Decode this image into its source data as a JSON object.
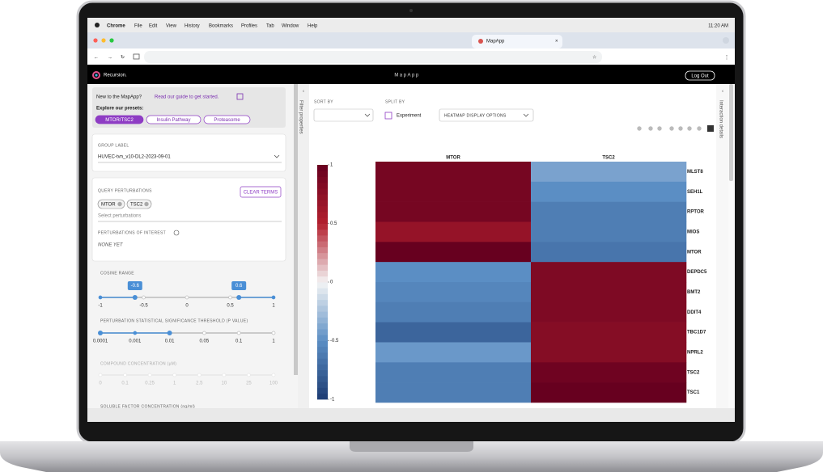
{
  "menu_bar": {
    "app": "Chrome",
    "items": [
      "File",
      "Edit",
      "View",
      "History",
      "Bookmarks",
      "Profiles",
      "Tab",
      "Window",
      "Help"
    ],
    "time": "11:20 AM"
  },
  "browser": {
    "tab_title": "MapApp"
  },
  "app_header": {
    "brand": "Recursion.",
    "title": "MapApp",
    "logout": "Log Out"
  },
  "left_panel": {
    "intro": {
      "text": "New to the MapApp?",
      "link": "Read our guide to get started.",
      "presets_title": "Explore our presets:",
      "presets": [
        "MTOR/TSC2",
        "Insulin Pathway",
        "Proteasome"
      ]
    },
    "group_label": {
      "label": "GROUP LABEL",
      "value": "HUVEC-tvn_v10-DL2-2023-09-01"
    },
    "query": {
      "label": "QUERY PERTURBATIONS",
      "clear": "CLEAR TERMS",
      "chips": [
        "MTOR",
        "TSC2"
      ],
      "placeholder": "Select perturbations",
      "interest_label": "PERTURBATIONS OF INTEREST",
      "interest_value": "NONE YET"
    },
    "sliders": [
      {
        "label": "COSINE RANGE",
        "ticks": [
          -1,
          -0.5,
          0,
          0.5,
          1
        ],
        "values": [
          -0.6,
          0.6
        ],
        "scale": "linear"
      },
      {
        "label": "PERTURBATION STATISTICAL SIGNIFICANCE THRESHOLD (P VALUE)",
        "ticks": [
          0.0001,
          0.001,
          0.01,
          0.05,
          0.1,
          1
        ],
        "values": [
          0.0001,
          0.01
        ],
        "scale": "index"
      },
      {
        "label": "COMPOUND CONCENTRATION (μM)",
        "ticks": [
          0,
          0.1,
          0.25,
          1,
          2.5,
          10,
          25,
          100
        ],
        "scale": "index",
        "disabled": true
      }
    ],
    "cutoff_label": "SOLUBLE FACTOR CONCENTRATION (ng/ml)"
  },
  "side_tabs": {
    "left": "Filter properties",
    "right": "Interaction details"
  },
  "controls": {
    "sort_by": "SORT BY",
    "split_by": "SPLIT BY",
    "experiment": "Experiment",
    "display_options": "HEATMAP DISPLAY OPTIONS"
  },
  "heatmap": {
    "type": "heatmap",
    "columns": [
      "MTOR",
      "TSC2"
    ],
    "rows": [
      "MLST8",
      "SEH1L",
      "RPTOR",
      "MIOS",
      "MTOR",
      "DEPDC5",
      "BMT2",
      "DDIT4",
      "TBC1D7",
      "NPRL2",
      "TSC2",
      "TSC1"
    ],
    "z": [
      [
        0.9,
        -0.4
      ],
      [
        0.9,
        -0.5
      ],
      [
        0.9,
        -0.6
      ],
      [
        0.7,
        -0.6
      ],
      [
        1,
        -0.65
      ],
      [
        -0.5,
        0.85
      ],
      [
        -0.55,
        0.85
      ],
      [
        -0.6,
        0.85
      ],
      [
        -0.75,
        0.8
      ],
      [
        -0.45,
        0.8
      ],
      [
        -0.6,
        0.95
      ],
      [
        -0.6,
        1
      ]
    ],
    "zlim": [
      -1,
      1
    ],
    "zticks": [
      1,
      0.5,
      0,
      -0.5,
      -1
    ],
    "colorscale": [
      "#1d3c73",
      "#5b8ec4",
      "#f4f4f4",
      "#b3202e",
      "#67001f"
    ]
  }
}
